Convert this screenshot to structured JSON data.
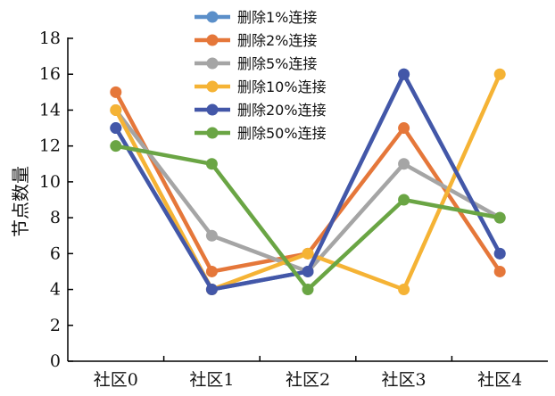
{
  "chart_data": {
    "type": "line",
    "categories": [
      "社区0",
      "社区1",
      "社区2",
      "社区3",
      "社区4"
    ],
    "ylabel": "节点数量",
    "xlabel": "",
    "ylim": [
      0,
      18
    ],
    "yticks": [
      0,
      2,
      4,
      6,
      8,
      10,
      12,
      14,
      16,
      18
    ],
    "legend_position": "top-center",
    "grid": false,
    "series": [
      {
        "name": "删除1%连接",
        "color": "#5b8fc9",
        "values": [
          13,
          4,
          5,
          16,
          6
        ]
      },
      {
        "name": "删除2%连接",
        "color": "#e5773a",
        "values": [
          15,
          5,
          6,
          13,
          5
        ]
      },
      {
        "name": "删除5%连接",
        "color": "#a5a5a5",
        "values": [
          14,
          7,
          5,
          11,
          8
        ]
      },
      {
        "name": "删除10%连接",
        "color": "#f5b335",
        "values": [
          14,
          4,
          6,
          4,
          16
        ]
      },
      {
        "name": "删除20%连接",
        "color": "#4357a8",
        "values": [
          13,
          4,
          5,
          16,
          6
        ]
      },
      {
        "name": "删除50%连接",
        "color": "#6aa544",
        "values": [
          12,
          11,
          4,
          9,
          8
        ]
      }
    ]
  }
}
